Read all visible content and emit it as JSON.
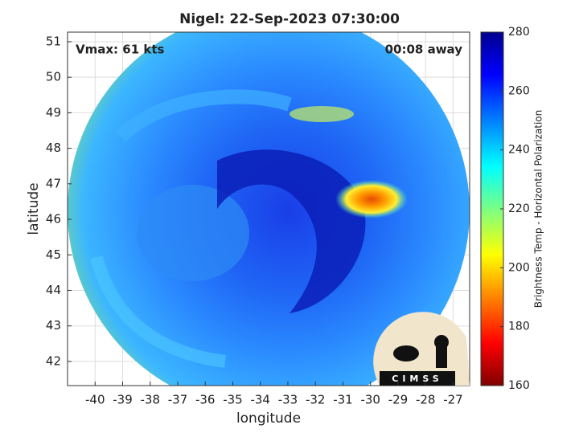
{
  "chart_data": {
    "type": "map",
    "title": "Nigel: 22-Sep-2023 07:30:00",
    "annotations": [
      "Vmax: 61 kts",
      "00:08 away"
    ],
    "xlabel": "longitude",
    "ylabel": "latitude",
    "xlim": [
      -41,
      -26.4
    ],
    "xticks": [
      -40,
      -39,
      -38,
      -37,
      -36,
      -35,
      -34,
      -33,
      -32,
      -31,
      -30,
      -29,
      -28,
      -27
    ],
    "ylim": [
      41.32,
      51.27
    ],
    "yticks": [
      42,
      43,
      44,
      45,
      46,
      47,
      48,
      49,
      50,
      51
    ],
    "grid": true,
    "colorbar": {
      "label": "Brightness Temp - Horizontal Polarization",
      "lim": [
        160,
        280
      ],
      "ticks": [
        160,
        180,
        200,
        220,
        240,
        260,
        280
      ]
    },
    "logo": "CIMSS"
  }
}
